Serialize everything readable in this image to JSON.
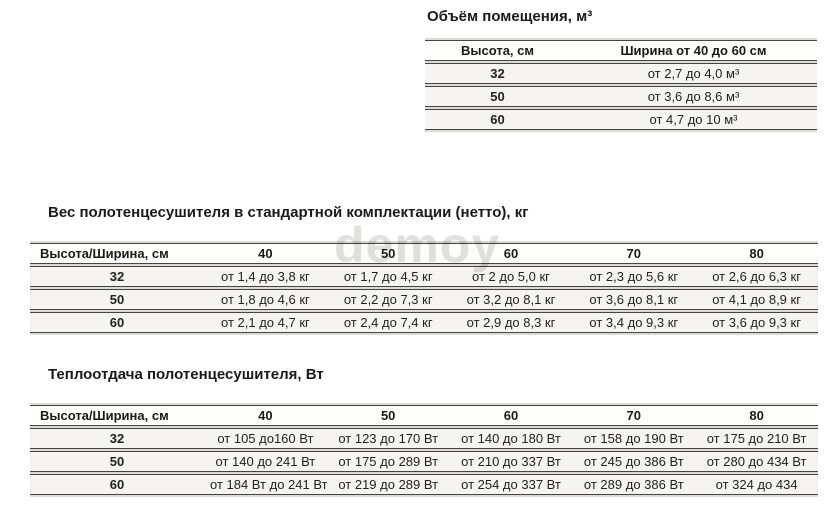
{
  "watermark": {
    "text": "demoy"
  },
  "colors": {
    "background": "#ffffff",
    "rule_line": "#454545",
    "row_background": "#f5f4f1",
    "text": "#1d1d1d",
    "watermark": "#c9c9c4"
  },
  "tables": [
    {
      "title": "Объём помещения, м³",
      "headers": [
        "Высота, см",
        "Ширина от 40 до 60 см"
      ],
      "rows": [
        [
          "32",
          "от 2,7 до 4,0 м³"
        ],
        [
          "50",
          "от 3,6 до 8,6 м³"
        ],
        [
          "60",
          "от 4,7 до 10 м³"
        ]
      ]
    },
    {
      "title": "Вес полотенцесушителя в стандартной комплектации (нетто), кг",
      "headers": [
        "Высота/Ширина, см",
        "40",
        "50",
        "60",
        "70",
        "80"
      ],
      "rows": [
        [
          "32",
          "от 1,4 до 3,8 кг",
          "от 1,7 до 4,5 кг",
          "от 2 до 5,0 кг",
          "от 2,3 до 5,6 кг",
          "от 2,6 до 6,3 кг"
        ],
        [
          "50",
          "от 1,8 до 4,6 кг",
          "от 2,2 до 7,3 кг",
          "от 3,2 до 8,1 кг",
          "от 3,6 до 8,1 кг",
          "от 4,1 до 8,9 кг"
        ],
        [
          "60",
          "от 2,1 до 4,7 кг",
          "от 2,4 до 7,4 кг",
          "от 2,9 до 8,3 кг",
          "от 3,4 до 9,3 кг",
          "от 3,6 до 9,3 кг"
        ]
      ]
    },
    {
      "title": "Теплоотдача полотенцесушителя, Вт",
      "headers": [
        "Высота/Ширина, см",
        "40",
        "50",
        "60",
        "70",
        "80"
      ],
      "rows": [
        [
          "32",
          "от 105 до160 Вт",
          "от 123 до 170 Вт",
          "от 140 до 180 Вт",
          "от 158 до 190 Вт",
          "от 175 до 210 Вт"
        ],
        [
          "50",
          "от 140 до 241 Вт",
          "от 175 до 289 Вт",
          "от 210 до 337 Вт",
          "от 245 до 386 Вт",
          "от 280 до 434 Вт"
        ],
        [
          "60",
          "от 184 Вт до 241 Вт",
          "от 219 до 289 Вт",
          "от 254 до 337 Вт",
          "от 289 до 386 Вт",
          "от 324 до 434"
        ]
      ]
    }
  ]
}
